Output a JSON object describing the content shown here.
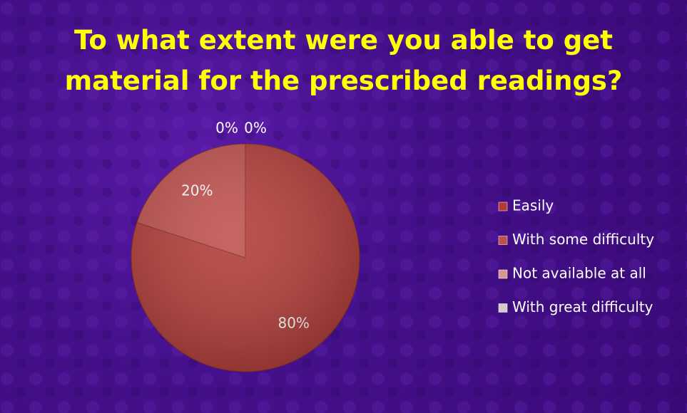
{
  "chart_data": {
    "type": "pie",
    "title": "To what extent were you able to get material for the prescribed readings?",
    "categories": [
      "Easily",
      "With some difficulty",
      "Not available at all",
      "With great difficulty"
    ],
    "values": [
      80,
      20,
      0,
      0
    ],
    "value_labels": [
      "80%",
      "20%",
      "0%",
      "0%"
    ],
    "colors": [
      "#b23b36",
      "#c0504d",
      "#d99694",
      "#d9c8c8"
    ],
    "legend": "right"
  }
}
